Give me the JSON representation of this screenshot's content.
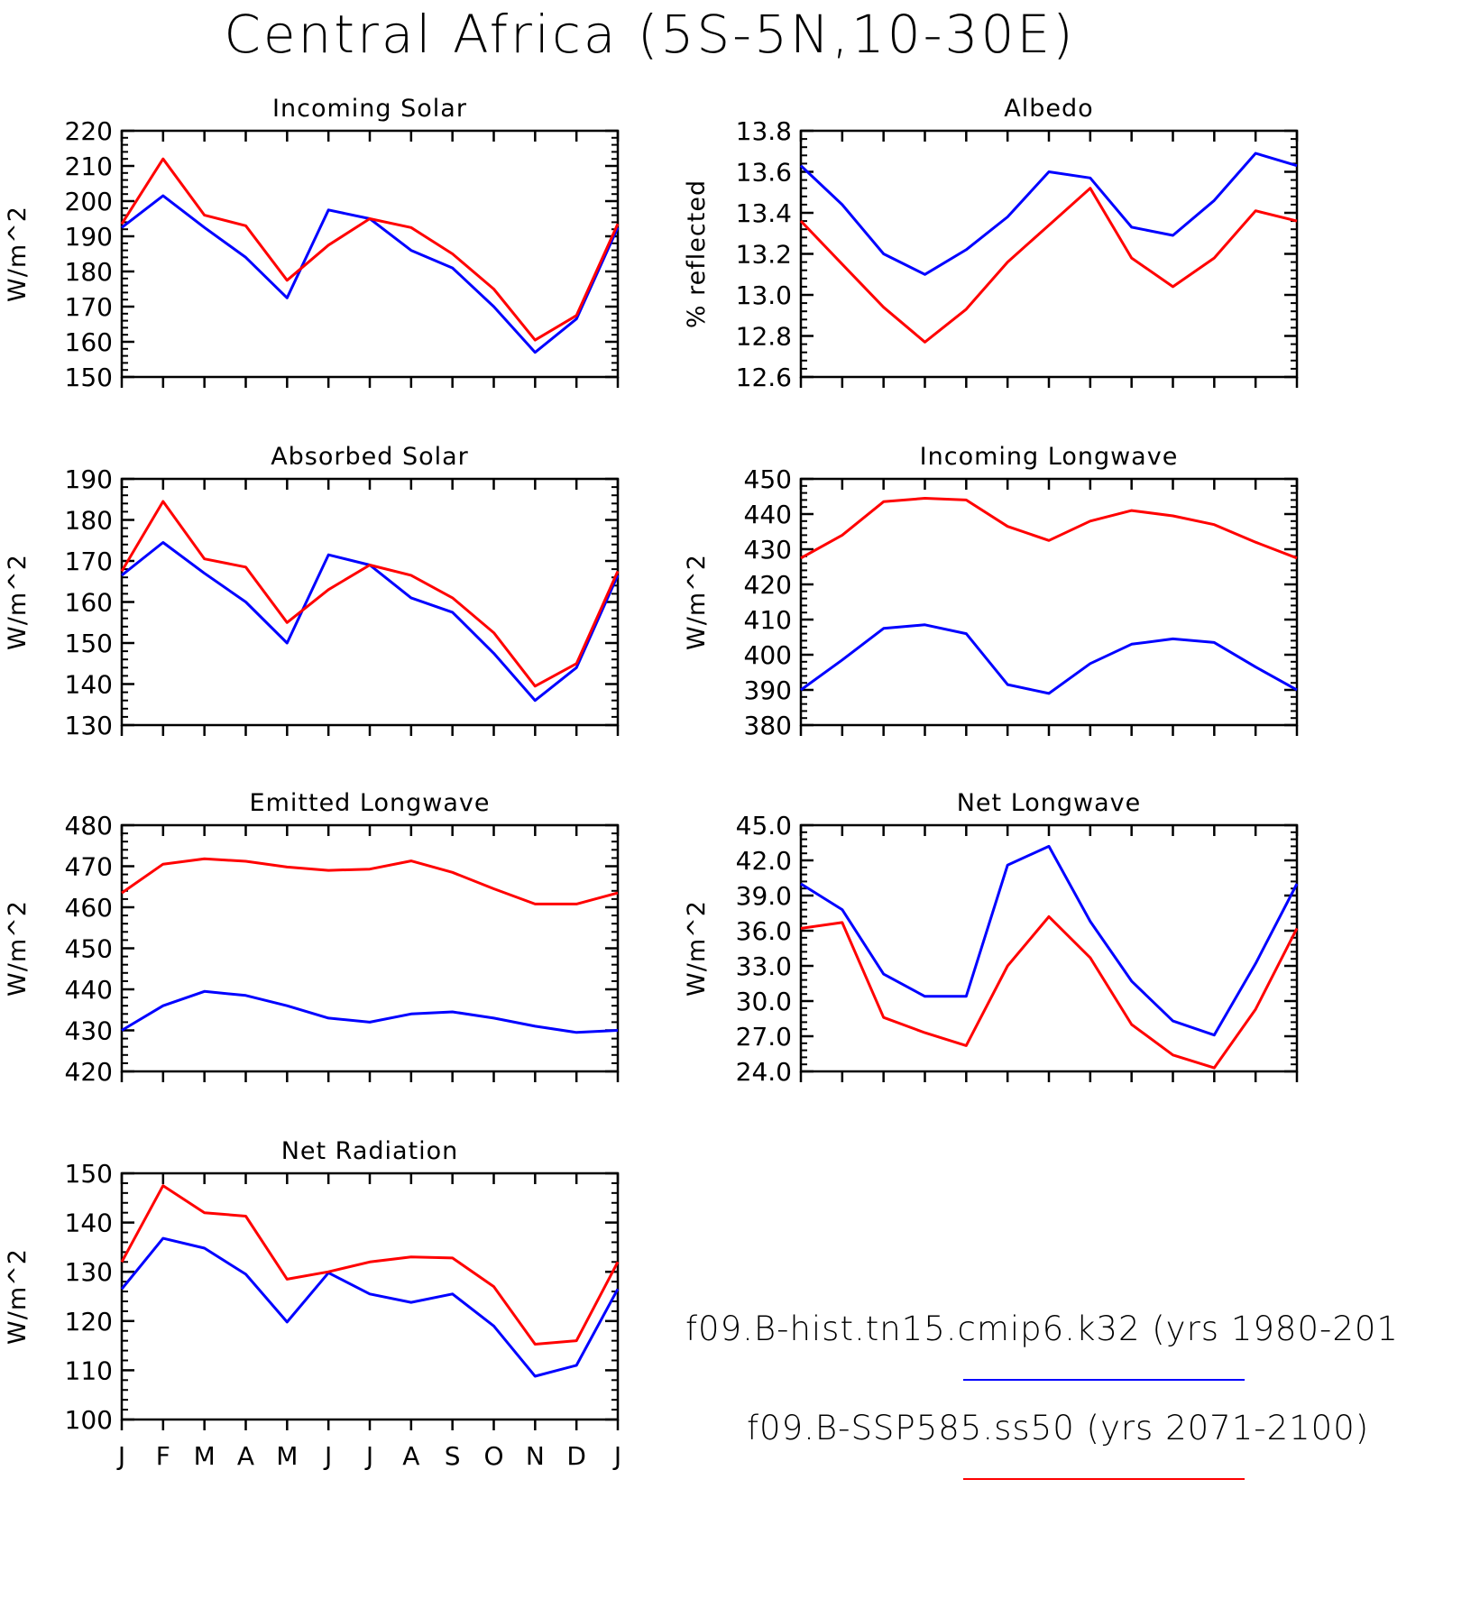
{
  "title": "Central Africa (5S-5N,10-30E)",
  "months": [
    "J",
    "F",
    "M",
    "A",
    "M",
    "J",
    "J",
    "A",
    "S",
    "O",
    "N",
    "D",
    "J"
  ],
  "legend": {
    "blue_label": "f09.B-hist.tn15.cmip6.k32 (yrs 1980-201",
    "red_label": "f09.B-SSP585.ss50 (yrs 2071-2100)",
    "blue_color": "#0000ff",
    "red_color": "#ff0000"
  },
  "chart_data": [
    {
      "type": "line",
      "title": "Incoming Solar",
      "ylabel": "W/m^2",
      "x": [
        "J",
        "F",
        "M",
        "A",
        "M",
        "J",
        "J",
        "A",
        "S",
        "O",
        "N",
        "D",
        "J"
      ],
      "ylim": [
        150,
        220
      ],
      "yticks": [
        "150",
        "160",
        "170",
        "180",
        "190",
        "200",
        "210",
        "220"
      ],
      "series": [
        {
          "color": "#0000ff",
          "values": [
            192.5,
            201.5,
            192.5,
            184,
            172.5,
            197.5,
            195,
            186,
            181,
            170,
            157,
            166.5,
            192.5
          ]
        },
        {
          "color": "#ff0000",
          "values": [
            193.5,
            212,
            196,
            193,
            177.5,
            187.5,
            195,
            192.5,
            185,
            175,
            160.5,
            167.5,
            193.5
          ]
        }
      ]
    },
    {
      "type": "line",
      "title": "Albedo",
      "ylabel": "% reflected",
      "x": [
        "J",
        "F",
        "M",
        "A",
        "M",
        "J",
        "J",
        "A",
        "S",
        "O",
        "N",
        "D",
        "J"
      ],
      "ylim": [
        12.6,
        13.8
      ],
      "yticks": [
        "12.6",
        "12.8",
        "13.0",
        "13.2",
        "13.4",
        "13.6",
        "13.8"
      ],
      "series": [
        {
          "color": "#0000ff",
          "values": [
            13.63,
            13.44,
            13.2,
            13.1,
            13.22,
            13.38,
            13.6,
            13.57,
            13.33,
            13.29,
            13.46,
            13.69,
            13.63
          ]
        },
        {
          "color": "#ff0000",
          "values": [
            13.36,
            13.15,
            12.94,
            12.77,
            12.93,
            13.16,
            13.34,
            13.52,
            13.18,
            13.04,
            13.18,
            13.41,
            13.36
          ]
        }
      ]
    },
    {
      "type": "line",
      "title": "Absorbed Solar",
      "ylabel": "W/m^2",
      "x": [
        "J",
        "F",
        "M",
        "A",
        "M",
        "J",
        "J",
        "A",
        "S",
        "O",
        "N",
        "D",
        "J"
      ],
      "ylim": [
        130,
        190
      ],
      "yticks": [
        "130",
        "140",
        "150",
        "160",
        "170",
        "180",
        "190"
      ],
      "series": [
        {
          "color": "#0000ff",
          "values": [
            166.5,
            174.5,
            167,
            160,
            150,
            171.5,
            169,
            161,
            157.5,
            147.5,
            136,
            144,
            166.5
          ]
        },
        {
          "color": "#ff0000",
          "values": [
            167.5,
            184.5,
            170.5,
            168.5,
            155,
            163,
            169,
            166.5,
            161,
            152.5,
            139.5,
            145,
            167.5
          ]
        }
      ]
    },
    {
      "type": "line",
      "title": "Incoming Longwave",
      "ylabel": "W/m^2",
      "x": [
        "J",
        "F",
        "M",
        "A",
        "M",
        "J",
        "J",
        "A",
        "S",
        "O",
        "N",
        "D",
        "J"
      ],
      "ylim": [
        380,
        450
      ],
      "yticks": [
        "380",
        "390",
        "400",
        "410",
        "420",
        "430",
        "440",
        "450"
      ],
      "series": [
        {
          "color": "#0000ff",
          "values": [
            390,
            398.5,
            407.5,
            408.5,
            406,
            391.5,
            389,
            397.5,
            403,
            404.5,
            403.5,
            396.5,
            390
          ]
        },
        {
          "color": "#ff0000",
          "values": [
            427.5,
            434,
            443.5,
            444.5,
            444,
            436.5,
            432.5,
            438,
            441,
            439.5,
            437,
            432,
            427.5
          ]
        }
      ]
    },
    {
      "type": "line",
      "title": "Emitted Longwave",
      "ylabel": "W/m^2",
      "x": [
        "J",
        "F",
        "M",
        "A",
        "M",
        "J",
        "J",
        "A",
        "S",
        "O",
        "N",
        "D",
        "J"
      ],
      "ylim": [
        420,
        480
      ],
      "yticks": [
        "420",
        "430",
        "440",
        "450",
        "460",
        "470",
        "480"
      ],
      "series": [
        {
          "color": "#0000ff",
          "values": [
            430,
            436,
            439.5,
            438.5,
            436,
            433,
            432,
            434,
            434.5,
            433,
            431,
            429.5,
            430
          ]
        },
        {
          "color": "#ff0000",
          "values": [
            463.5,
            470.5,
            471.8,
            471.2,
            469.8,
            469,
            469.3,
            471.3,
            468.5,
            464.5,
            460.8,
            460.8,
            463.5
          ]
        }
      ]
    },
    {
      "type": "line",
      "title": "Net Longwave",
      "ylabel": "W/m^2",
      "x": [
        "J",
        "F",
        "M",
        "A",
        "M",
        "J",
        "J",
        "A",
        "S",
        "O",
        "N",
        "D",
        "J"
      ],
      "ylim": [
        24.0,
        45.0
      ],
      "yticks": [
        "24.0",
        "27.0",
        "30.0",
        "33.0",
        "36.0",
        "39.0",
        "42.0",
        "45.0"
      ],
      "series": [
        {
          "color": "#0000ff",
          "values": [
            40.0,
            37.8,
            32.3,
            30.4,
            30.4,
            41.6,
            43.2,
            36.8,
            31.7,
            28.3,
            27.1,
            33.2,
            40.0
          ]
        },
        {
          "color": "#ff0000",
          "values": [
            36.2,
            36.7,
            28.6,
            27.3,
            26.2,
            33.0,
            37.2,
            33.7,
            28.0,
            25.4,
            24.3,
            29.3,
            36.2
          ]
        }
      ]
    },
    {
      "type": "line",
      "title": "Net Radiation",
      "ylabel": "W/m^2",
      "x": [
        "J",
        "F",
        "M",
        "A",
        "M",
        "J",
        "J",
        "A",
        "S",
        "O",
        "N",
        "D",
        "J"
      ],
      "ylim": [
        100,
        150
      ],
      "yticks": [
        "100",
        "110",
        "120",
        "130",
        "140",
        "150"
      ],
      "series": [
        {
          "color": "#0000ff",
          "values": [
            126.5,
            136.8,
            134.8,
            129.5,
            119.8,
            129.8,
            125.5,
            123.8,
            125.5,
            119,
            108.8,
            111,
            126.5
          ]
        },
        {
          "color": "#ff0000",
          "values": [
            132,
            147.5,
            142,
            141.3,
            128.5,
            130,
            132,
            133,
            132.8,
            127,
            115.3,
            116,
            132
          ]
        }
      ]
    }
  ]
}
